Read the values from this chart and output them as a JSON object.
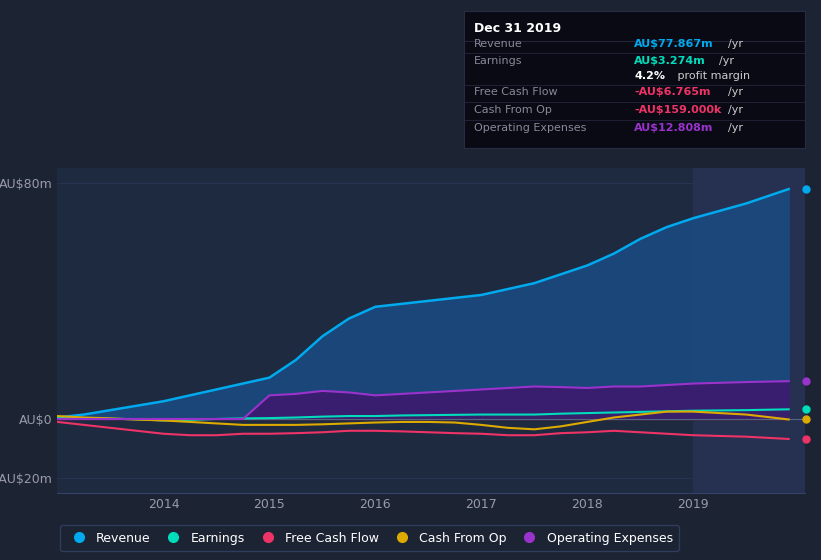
{
  "background_color": "#1c2333",
  "plot_bg_color": "#1e2a40",
  "years": [
    2013.0,
    2013.25,
    2013.5,
    2013.75,
    2014.0,
    2014.25,
    2014.5,
    2014.75,
    2015.0,
    2015.25,
    2015.5,
    2015.75,
    2016.0,
    2016.25,
    2016.5,
    2016.75,
    2017.0,
    2017.25,
    2017.5,
    2017.75,
    2018.0,
    2018.25,
    2018.5,
    2018.75,
    2019.0,
    2019.5,
    2019.9
  ],
  "revenue": [
    0.5,
    1.5,
    3.0,
    4.5,
    6.0,
    8.0,
    10.0,
    12.0,
    14.0,
    20.0,
    28.0,
    34.0,
    38.0,
    39.0,
    40.0,
    41.0,
    42.0,
    44.0,
    46.0,
    49.0,
    52.0,
    56.0,
    61.0,
    65.0,
    68.0,
    73.0,
    77.867
  ],
  "earnings": [
    0.5,
    0.3,
    0.1,
    -0.1,
    -0.5,
    -0.3,
    0.0,
    0.2,
    0.3,
    0.5,
    0.8,
    1.0,
    1.0,
    1.2,
    1.3,
    1.4,
    1.5,
    1.5,
    1.5,
    1.8,
    2.0,
    2.2,
    2.4,
    2.6,
    2.8,
    3.0,
    3.274
  ],
  "free_cash_flow": [
    -1.0,
    -2.0,
    -3.0,
    -4.0,
    -5.0,
    -5.5,
    -5.5,
    -5.0,
    -5.0,
    -4.8,
    -4.5,
    -4.0,
    -4.0,
    -4.2,
    -4.5,
    -4.8,
    -5.0,
    -5.5,
    -5.5,
    -4.8,
    -4.5,
    -4.0,
    -4.5,
    -5.0,
    -5.5,
    -6.0,
    -6.765
  ],
  "cash_from_op": [
    1.0,
    0.5,
    0.2,
    -0.2,
    -0.5,
    -1.0,
    -1.5,
    -2.0,
    -2.0,
    -2.0,
    -1.8,
    -1.5,
    -1.2,
    -1.0,
    -1.0,
    -1.2,
    -2.0,
    -3.0,
    -3.5,
    -2.5,
    -1.0,
    0.5,
    1.5,
    2.5,
    2.5,
    1.5,
    -0.159
  ],
  "op_expenses": [
    0.0,
    0.0,
    0.0,
    0.0,
    0.0,
    0.0,
    0.0,
    0.0,
    8.0,
    8.5,
    9.5,
    9.0,
    8.0,
    8.5,
    9.0,
    9.5,
    10.0,
    10.5,
    11.0,
    10.8,
    10.5,
    11.0,
    11.0,
    11.5,
    12.0,
    12.5,
    12.808
  ],
  "ylim": [
    -25,
    85
  ],
  "xlim": [
    2013.0,
    2020.05
  ],
  "yticks": [
    -20,
    0,
    80
  ],
  "ytick_labels": [
    "-AU$20m",
    "AU$0",
    "AU$80m"
  ],
  "xticks": [
    2014,
    2015,
    2016,
    2017,
    2018,
    2019
  ],
  "revenue_color": "#00aaee",
  "earnings_color": "#00ddbb",
  "free_cash_flow_color": "#ee3366",
  "cash_from_op_color": "#ddaa00",
  "op_expenses_color": "#9933cc",
  "revenue_fill_color": "#1a4a80",
  "earnings_fill_pos_color": "#1a6050",
  "earnings_fill_neg_color": "#6b1a1a",
  "op_expenses_fill_color": "#3d1a6e",
  "highlight_x_start": 2019.0,
  "highlight_color": "#263050",
  "info_box": {
    "title": "Dec 31 2019",
    "title_color": "#ffffff",
    "label_color": "#888899",
    "unit_color": "#cccccc",
    "bg_color": "#0a0a14",
    "border_color": "#2a2a44",
    "rows": [
      {
        "label": "Revenue",
        "value": "AU$77.867m",
        "unit": "/yr",
        "value_color": "#00aaee",
        "sep_above": false
      },
      {
        "label": "Earnings",
        "value": "AU$3.274m",
        "unit": "/yr",
        "value_color": "#00ddbb",
        "sep_above": true
      },
      {
        "label": "",
        "value": "4.2%",
        "unit": " profit margin",
        "value_color": "#ffffff",
        "sep_above": false
      },
      {
        "label": "Free Cash Flow",
        "value": "-AU$6.765m",
        "unit": "/yr",
        "value_color": "#ee3366",
        "sep_above": true
      },
      {
        "label": "Cash From Op",
        "value": "-AU$159.000k",
        "unit": "/yr",
        "value_color": "#ee3366",
        "sep_above": true
      },
      {
        "label": "Operating Expenses",
        "value": "AU$12.808m",
        "unit": "/yr",
        "value_color": "#9933cc",
        "sep_above": true
      }
    ]
  },
  "legend_items": [
    {
      "label": "Revenue",
      "color": "#00aaee"
    },
    {
      "label": "Earnings",
      "color": "#00ddbb"
    },
    {
      "label": "Free Cash Flow",
      "color": "#ee3366"
    },
    {
      "label": "Cash From Op",
      "color": "#ddaa00"
    },
    {
      "label": "Operating Expenses",
      "color": "#9933cc"
    }
  ]
}
